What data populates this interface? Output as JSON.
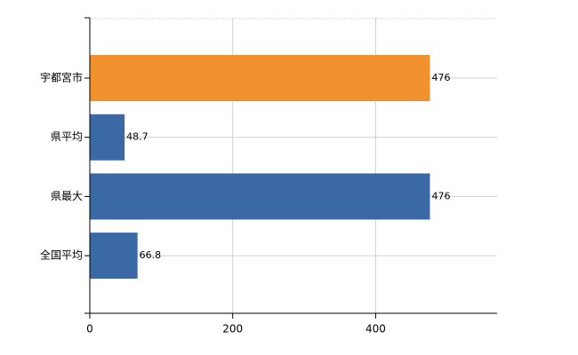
{
  "chart_data": {
    "type": "hbar",
    "categories": [
      "宇都宮市",
      "県平均",
      "県最大",
      "全国平均"
    ],
    "values": [
      476,
      48.7,
      476,
      66.8
    ],
    "colors": [
      "#f0912e",
      "#3a69a6",
      "#3a69a6",
      "#3a69a6"
    ],
    "xlim": [
      0,
      570
    ],
    "xticks": [
      0,
      200,
      400
    ],
    "grid": true
  }
}
